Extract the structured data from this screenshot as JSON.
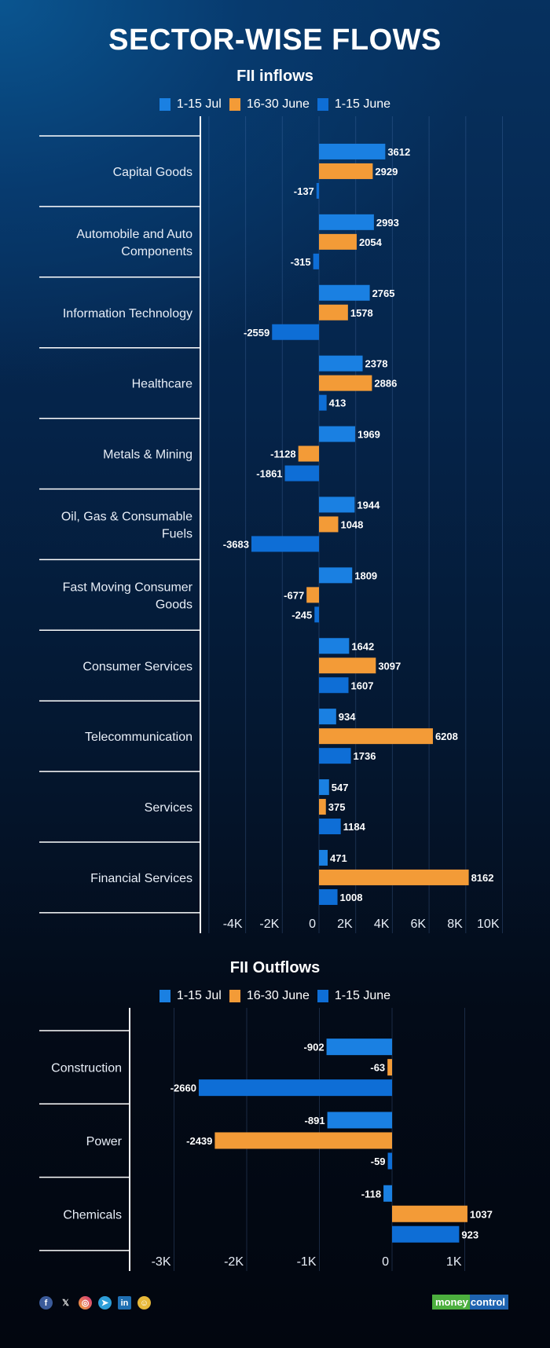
{
  "title": "SECTOR-WISE FLOWS",
  "series_meta": [
    {
      "name": "1-15 Jul",
      "color": "#1a80e2"
    },
    {
      "name": "16-30 June",
      "color": "#f39b37"
    },
    {
      "name": "1-15 June",
      "color": "#0e6ed6"
    }
  ],
  "chart_data": [
    {
      "type": "bar",
      "orientation": "horizontal",
      "title": "FII inflows",
      "categories": [
        "Capital Goods",
        "Automobile and Auto Components",
        "Information Technology",
        "Healthcare",
        "Metals & Mining",
        "Oil, Gas & Consumable Fuels",
        "Fast Moving Consumer Goods",
        "Consumer Services",
        "Telecommunication",
        "Services",
        "Financial Services"
      ],
      "series": [
        {
          "name": "1-15 Jul",
          "values": [
            3612,
            2993,
            2765,
            2378,
            1969,
            1944,
            1809,
            1642,
            934,
            547,
            471
          ]
        },
        {
          "name": "16-30 June",
          "values": [
            2929,
            2054,
            1578,
            2886,
            -1128,
            1048,
            -677,
            3097,
            6208,
            375,
            8162
          ]
        },
        {
          "name": "1-15 June",
          "values": [
            -137,
            -315,
            -2559,
            413,
            -1861,
            -3683,
            -245,
            1607,
            1736,
            1184,
            1008
          ]
        }
      ],
      "xticks": [
        -4000,
        -2000,
        0,
        2000,
        4000,
        6000,
        8000,
        10000
      ],
      "xtick_labels": [
        "-4K",
        "-2K",
        "0",
        "2K",
        "4K",
        "6K",
        "8K",
        "10K"
      ],
      "xlim": [
        -6000,
        10000
      ],
      "legend": "top-center",
      "grid": true
    },
    {
      "type": "bar",
      "orientation": "horizontal",
      "title": "FII Outflows",
      "categories": [
        "Construction",
        "Power",
        "Chemicals"
      ],
      "series": [
        {
          "name": "1-15 Jul",
          "values": [
            -902,
            -891,
            -118
          ]
        },
        {
          "name": "16-30 June",
          "values": [
            -63,
            -2439,
            1037
          ]
        },
        {
          "name": "1-15 June",
          "values": [
            -2660,
            -59,
            923
          ]
        }
      ],
      "xticks": [
        -3000,
        -2000,
        -1000,
        0,
        1000
      ],
      "xtick_labels": [
        "-3K",
        "-2K",
        "-1K",
        "0",
        "1K"
      ],
      "xlim": [
        -3000,
        1000
      ],
      "legend": "top-center",
      "grid": true
    }
  ],
  "footer": {
    "social_icons": [
      "facebook-icon",
      "x-icon",
      "instagram-icon",
      "telegram-icon",
      "linkedin-icon",
      "snapchat-icon"
    ],
    "brand_part1": "money",
    "brand_part2": "control"
  }
}
